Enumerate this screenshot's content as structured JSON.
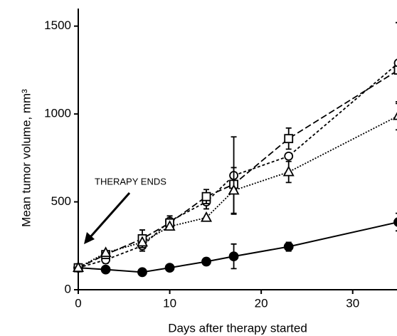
{
  "chart_data": {
    "type": "line",
    "x_label": "Days after therapy started",
    "y_label": "Mean tumor volume, mm³",
    "annotation": "THERAPY ENDS",
    "x": [
      0,
      3,
      7,
      10,
      14,
      17,
      23,
      35
    ],
    "xlim": [
      0,
      35
    ],
    "xticks": [
      0,
      10,
      20,
      30
    ],
    "ylim": [
      0,
      1600
    ],
    "yticks": [
      0,
      500,
      1000,
      1500
    ],
    "series": [
      {
        "color": "#000000",
        "marker": "circle-filled",
        "dash": "solid",
        "values": [
          125,
          115,
          100,
          125,
          160,
          190,
          245,
          385
        ],
        "errors": [
          0,
          0,
          0,
          0,
          20,
          70,
          25,
          50
        ]
      },
      {
        "color": "#000000",
        "marker": "circle-open",
        "dash": "short",
        "values": [
          125,
          170,
          250,
          390,
          500,
          650,
          760,
          1290
        ],
        "errors": [
          0,
          20,
          30,
          0,
          40,
          220,
          0,
          230
        ]
      },
      {
        "color": "#000000",
        "marker": "square-open",
        "dash": "long",
        "values": [
          125,
          200,
          290,
          380,
          530,
          600,
          860,
          1250
        ],
        "errors": [
          0,
          0,
          50,
          40,
          40,
          0,
          60,
          270
        ]
      },
      {
        "color": "#000000",
        "marker": "triangle-open",
        "dash": "dotted",
        "values": [
          125,
          210,
          270,
          360,
          410,
          565,
          670,
          990
        ],
        "errors": [
          0,
          0,
          0,
          0,
          0,
          130,
          60,
          80
        ]
      }
    ]
  }
}
